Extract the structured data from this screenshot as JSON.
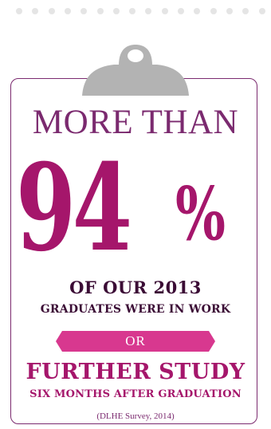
{
  "colors": {
    "accent": "#a5166b",
    "dark": "#3b0c35",
    "border": "#7b2a6f",
    "banner": "#d8388f",
    "clip": "#b3b3b3",
    "dots": "#e5e5e5"
  },
  "icons": {
    "clipboard": "clipboard-clip-icon"
  },
  "stat": {
    "intro": "MORE THAN",
    "number": "94",
    "percent_sign": "%",
    "value_percent": 94
  },
  "subtitle": {
    "line1": "OF OUR 2013",
    "line2": "GRADUATES WERE IN WORK"
  },
  "connector": "OR",
  "alternative": {
    "line1": "FURTHER STUDY",
    "line2": "SIX MONTHS AFTER GRADUATION"
  },
  "source": "(DLHE Survey, 2014)"
}
